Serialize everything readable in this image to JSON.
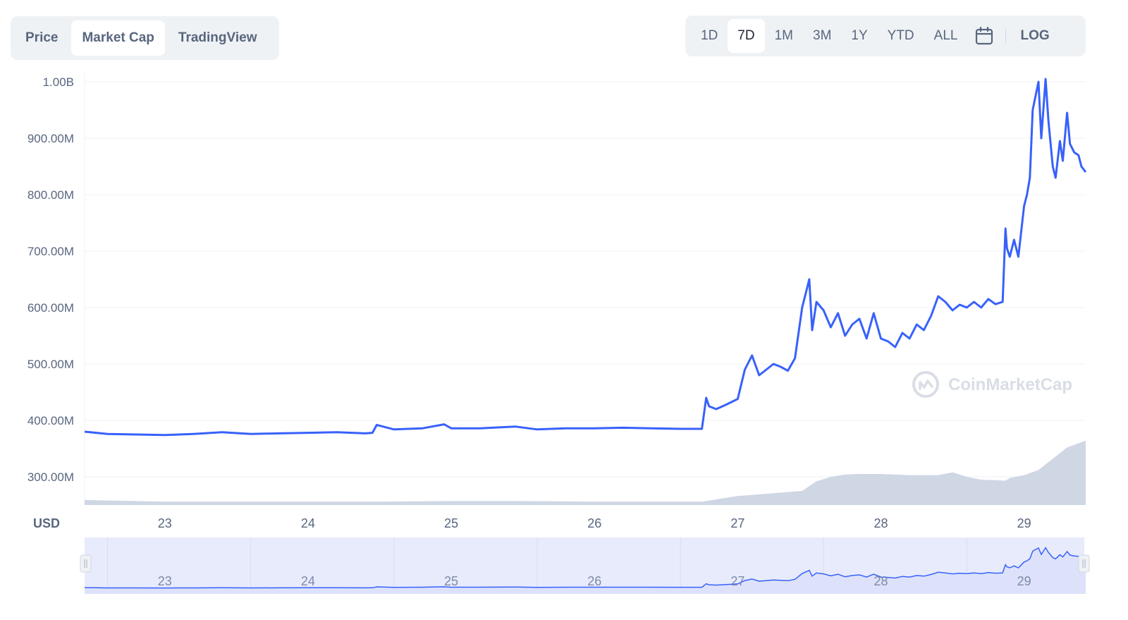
{
  "tabs": [
    {
      "label": "Price",
      "active": false
    },
    {
      "label": "Market Cap",
      "active": true
    },
    {
      "label": "TradingView",
      "active": false
    }
  ],
  "ranges": [
    "1D",
    "7D",
    "1M",
    "3M",
    "1Y",
    "YTD",
    "ALL"
  ],
  "active_range": "7D",
  "log_label": "LOG",
  "calendar_icon": "calendar-icon",
  "watermark": "CoinMarketCap",
  "currency_label": "USD",
  "colors": {
    "line": "#3861fb",
    "volume": "#cfd6e4",
    "grid": "#eff2f5",
    "axis_text": "#58667e",
    "navigator_fill": "#e8ebfc"
  },
  "chart_data": {
    "type": "line",
    "xlabel": "",
    "ylabel": "USD",
    "x_ticks": [
      "23",
      "24",
      "25",
      "26",
      "27",
      "28",
      "29"
    ],
    "x_range": [
      22.44,
      29.43
    ],
    "y_ticks": [
      "300.00M",
      "400.00M",
      "500.00M",
      "600.00M",
      "700.00M",
      "800.00M",
      "900.00M",
      "1.00B"
    ],
    "y_tick_values": [
      300,
      400,
      500,
      600,
      700,
      800,
      900,
      1000
    ],
    "ylim": [
      250,
      1020
    ],
    "grid": true,
    "series": [
      {
        "kind": "market_cap_millions_usd",
        "x": [
          22.44,
          22.6,
          22.8,
          23.0,
          23.2,
          23.4,
          23.6,
          23.8,
          24.0,
          24.2,
          24.4,
          24.45,
          24.48,
          24.6,
          24.8,
          24.95,
          25.0,
          25.2,
          25.45,
          25.6,
          25.8,
          26.0,
          26.2,
          26.4,
          26.6,
          26.75,
          26.78,
          26.8,
          26.85,
          26.92,
          27.0,
          27.05,
          27.1,
          27.15,
          27.2,
          27.25,
          27.3,
          27.35,
          27.4,
          27.45,
          27.5,
          27.52,
          27.55,
          27.6,
          27.65,
          27.7,
          27.75,
          27.8,
          27.85,
          27.9,
          27.95,
          28.0,
          28.05,
          28.1,
          28.15,
          28.2,
          28.25,
          28.3,
          28.35,
          28.4,
          28.45,
          28.5,
          28.55,
          28.6,
          28.65,
          28.7,
          28.75,
          28.8,
          28.85,
          28.87,
          28.88,
          28.9,
          28.93,
          28.96,
          29.0,
          29.02,
          29.04,
          29.06,
          29.1,
          29.12,
          29.15,
          29.17,
          29.2,
          29.22,
          29.25,
          29.27,
          29.3,
          29.32,
          29.35,
          29.38,
          29.4,
          29.43
        ],
        "y": [
          380,
          376,
          375,
          374,
          376,
          379,
          376,
          377,
          378,
          379,
          377,
          378,
          392,
          384,
          386,
          393,
          386,
          386,
          389,
          384,
          386,
          386,
          387,
          386,
          385,
          385,
          440,
          425,
          420,
          428,
          438,
          490,
          515,
          480,
          490,
          500,
          495,
          488,
          510,
          600,
          650,
          560,
          610,
          595,
          565,
          590,
          550,
          570,
          580,
          545,
          590,
          545,
          540,
          530,
          555,
          545,
          570,
          560,
          585,
          620,
          610,
          595,
          605,
          600,
          610,
          600,
          615,
          606,
          610,
          740,
          705,
          690,
          720,
          690,
          780,
          800,
          830,
          950,
          1000,
          900,
          1005,
          930,
          850,
          830,
          895,
          860,
          945,
          890,
          875,
          870,
          850,
          840
        ]
      }
    ],
    "volume_series": {
      "x": [
        22.44,
        22.6,
        22.8,
        23.0,
        23.5,
        24.0,
        24.5,
        25.0,
        25.5,
        26.0,
        26.5,
        26.75,
        26.9,
        27.0,
        27.2,
        27.45,
        27.55,
        27.65,
        27.75,
        27.85,
        28.0,
        28.2,
        28.4,
        28.5,
        28.6,
        28.7,
        28.8,
        28.87,
        28.9,
        29.0,
        29.1,
        29.2,
        29.3,
        29.43
      ],
      "y": [
        259,
        258,
        257,
        256,
        256,
        256,
        256,
        257,
        257,
        256,
        256,
        256,
        262,
        266,
        270,
        275,
        292,
        300,
        304,
        305,
        305,
        303,
        303,
        308,
        300,
        295,
        294,
        293,
        298,
        303,
        312,
        332,
        352,
        364
      ]
    }
  }
}
